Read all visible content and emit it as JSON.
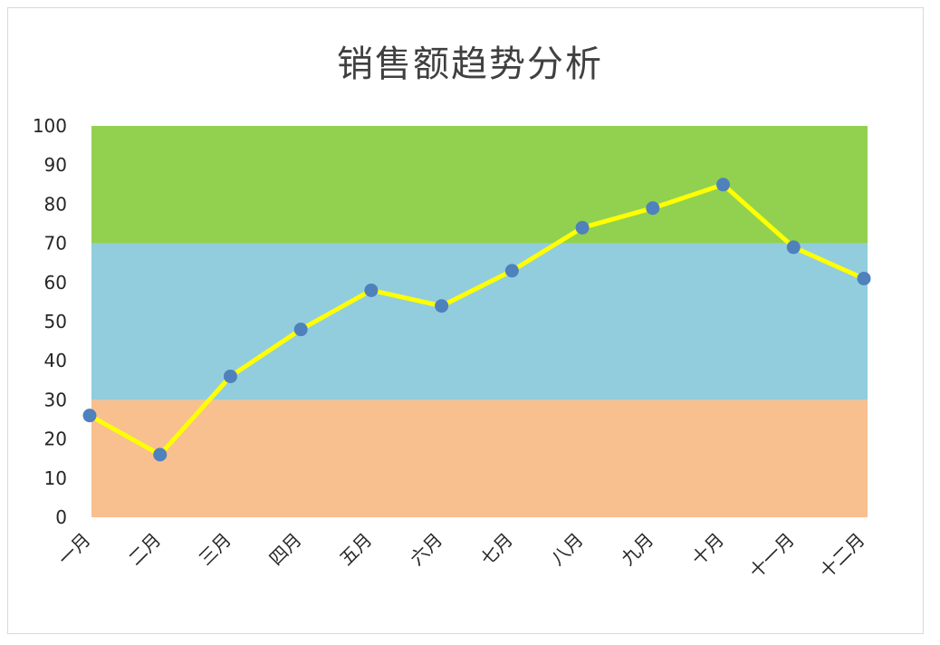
{
  "chart_data": {
    "type": "line",
    "title": "销售额趋势分析",
    "categories": [
      "一月",
      "二月",
      "三月",
      "四月",
      "五月",
      "六月",
      "七月",
      "八月",
      "九月",
      "十月",
      "十一月",
      "十二月"
    ],
    "series": [
      {
        "values": [
          26,
          16,
          36,
          48,
          58,
          54,
          63,
          74,
          79,
          85,
          69,
          61
        ]
      }
    ],
    "ylim": [
      0,
      100
    ],
    "yticks": [
      "0",
      "10",
      "20",
      "30",
      "40",
      "50",
      "60",
      "70",
      "80",
      "90",
      "100"
    ],
    "bands": [
      {
        "from": 0,
        "to": 30,
        "color": "#F8BF8F"
      },
      {
        "from": 30,
        "to": 70,
        "color": "#92CDDD"
      },
      {
        "from": 70,
        "to": 100,
        "color": "#92D14F"
      }
    ],
    "line_color": "#FFFF00",
    "marker_color": "#4F81BD",
    "grid": false,
    "legend": "none"
  }
}
